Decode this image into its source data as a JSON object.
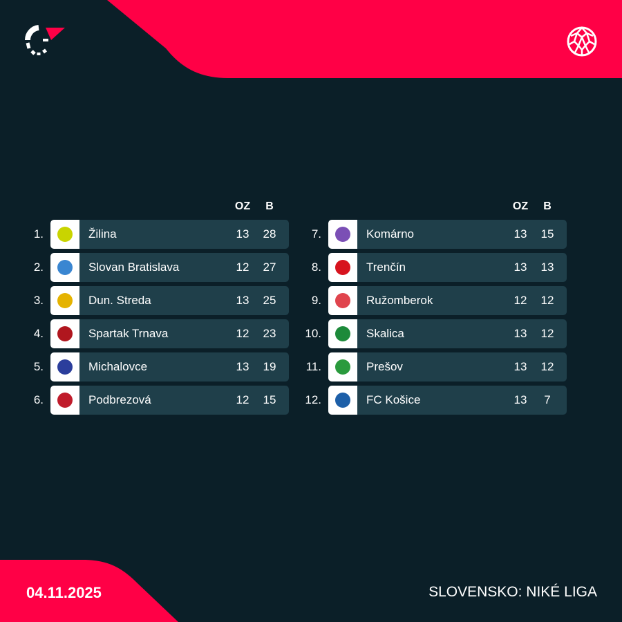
{
  "header": {
    "logo": "flashscore-logo",
    "sport_icon": "football-icon"
  },
  "colors": {
    "background": "#0b1f28",
    "accent": "#ff0046",
    "row": "#1f3f4a"
  },
  "columns": {
    "played": "OZ",
    "points": "B"
  },
  "left": [
    {
      "rank": "1.",
      "team": "Žilina",
      "played": "13",
      "points": "28",
      "crest": "#c9d400"
    },
    {
      "rank": "2.",
      "team": "Slovan Bratislava",
      "played": "12",
      "points": "27",
      "crest": "#3a86d1"
    },
    {
      "rank": "3.",
      "team": "Dun. Streda",
      "played": "13",
      "points": "25",
      "crest": "#e5b300"
    },
    {
      "rank": "4.",
      "team": "Spartak Trnava",
      "played": "12",
      "points": "23",
      "crest": "#b0161e"
    },
    {
      "rank": "5.",
      "team": "Michalovce",
      "played": "13",
      "points": "19",
      "crest": "#2b3e9c"
    },
    {
      "rank": "6.",
      "team": "Podbrezová",
      "played": "12",
      "points": "15",
      "crest": "#c01c2b"
    }
  ],
  "right": [
    {
      "rank": "7.",
      "team": "Komárno",
      "played": "13",
      "points": "15",
      "crest": "#7b4fb5"
    },
    {
      "rank": "8.",
      "team": "Trenčín",
      "played": "13",
      "points": "13",
      "crest": "#d7141e"
    },
    {
      "rank": "9.",
      "team": "Ružomberok",
      "played": "12",
      "points": "12",
      "crest": "#e0444d"
    },
    {
      "rank": "10.",
      "team": "Skalica",
      "played": "13",
      "points": "12",
      "crest": "#1d8a3a"
    },
    {
      "rank": "11.",
      "team": "Prešov",
      "played": "13",
      "points": "12",
      "crest": "#2a9a3d"
    },
    {
      "rank": "12.",
      "team": "FC Košice",
      "played": "13",
      "points": "7",
      "crest": "#1d5fa8"
    }
  ],
  "footer": {
    "date": "04.11.2025",
    "league": "SLOVENSKO: NIKÉ LIGA"
  }
}
